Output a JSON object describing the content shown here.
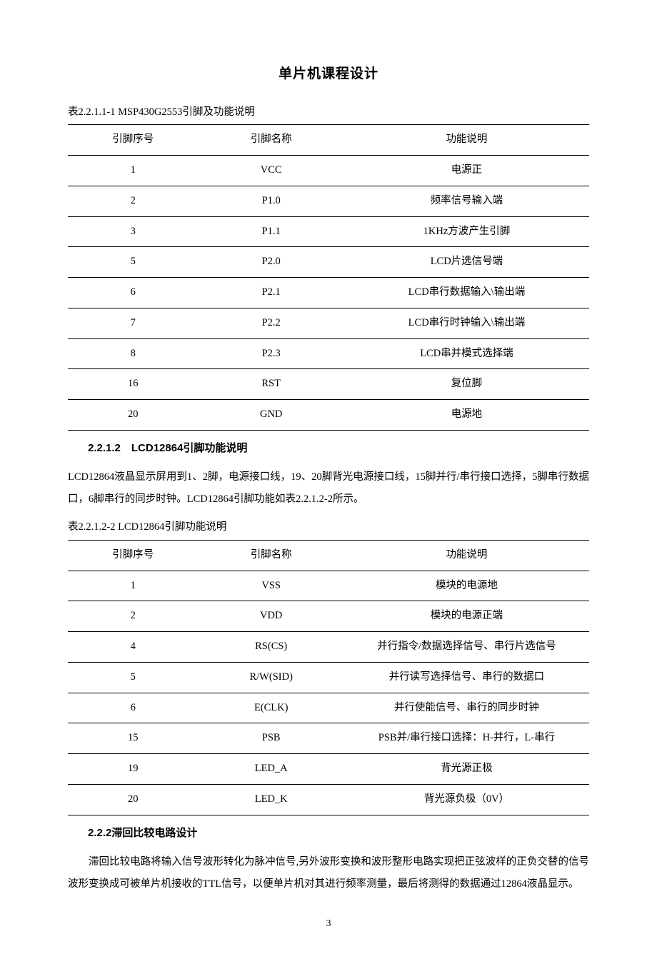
{
  "doc_title": "单片机课程设计",
  "table1": {
    "caption": "表2.2.1.1-1 MSP430G2553引脚及功能说明",
    "headers": [
      "引脚序号",
      "引脚名称",
      "功能说明"
    ],
    "rows": [
      [
        "1",
        "VCC",
        "电源正"
      ],
      [
        "2",
        "P1.0",
        "频率信号输入端"
      ],
      [
        "3",
        "P1.1",
        "1KHz方波产生引脚"
      ],
      [
        "5",
        "P2.0",
        "LCD片选信号端"
      ],
      [
        "6",
        "P2.1",
        "LCD串行数据输入\\输出端"
      ],
      [
        "7",
        "P2.2",
        "LCD串行时钟输入\\输出端"
      ],
      [
        "8",
        "P2.3",
        "LCD串并模式选择端"
      ],
      [
        "16",
        "RST",
        "复位脚"
      ],
      [
        "20",
        "GND",
        "电源地"
      ]
    ]
  },
  "heading1": "2.2.1.2　LCD12864引脚功能说明",
  "para1": "LCD12864液晶显示屏用到1、2脚，电源接口线，19、20脚背光电源接口线，15脚并行/串行接口选择，5脚串行数据口，6脚串行的同步时钟。LCD12864引脚功能如表2.2.1.2-2所示。",
  "table2": {
    "caption": "表2.2.1.2-2 LCD12864引脚功能说明",
    "headers": [
      "引脚序号",
      "引脚名称",
      "功能说明"
    ],
    "rows": [
      [
        "1",
        "VSS",
        "模块的电源地"
      ],
      [
        "2",
        "VDD",
        "模块的电源正端"
      ],
      [
        "4",
        "RS(CS)",
        "并行指令/数据选择信号、串行片选信号"
      ],
      [
        "5",
        "R/W(SID)",
        "并行读写选择信号、串行的数据口"
      ],
      [
        "6",
        "E(CLK)",
        "并行使能信号、串行的同步时钟"
      ],
      [
        "15",
        "PSB",
        "PSB并/串行接口选择：H-并行，L-串行"
      ],
      [
        "19",
        "LED_A",
        "背光源正极"
      ],
      [
        "20",
        "LED_K",
        "背光源负极（0V）"
      ]
    ]
  },
  "heading2": "2.2.2滞回比较电路设计",
  "para2": "滞回比较电路将输入信号波形转化为脉冲信号,另外波形变换和波形整形电路实现把正弦波样的正负交替的信号波形变换成可被单片机接收的TTL信号，以便单片机对其进行频率测量，最后将测得的数据通过12864液晶显示。",
  "page_number": "3"
}
